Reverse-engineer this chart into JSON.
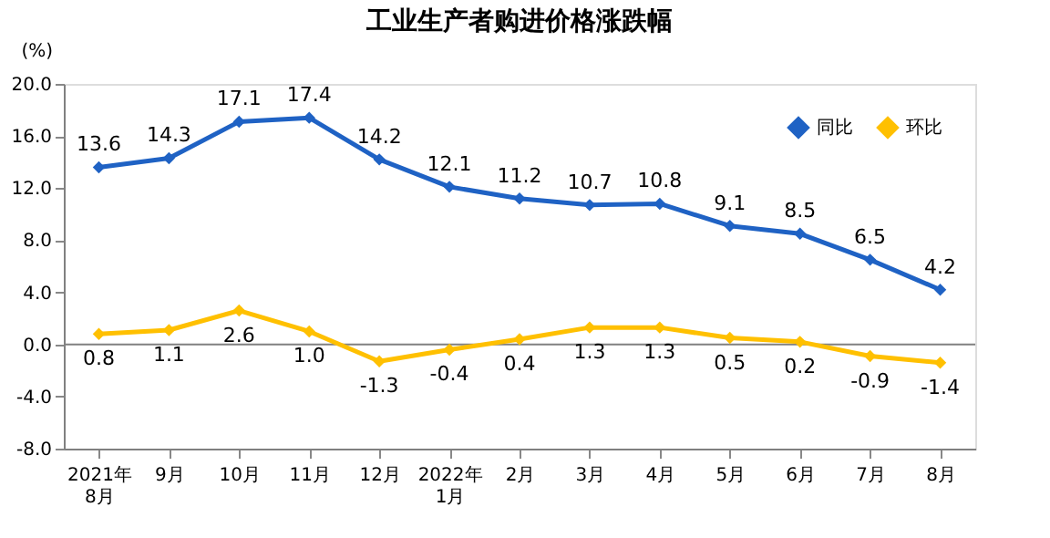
{
  "chart_data": {
    "type": "line",
    "title": "工业生产者购进价格涨跌幅",
    "ylabel": "(%)",
    "categories": [
      "2021年\n8月",
      "9月",
      "10月",
      "11月",
      "12月",
      "2022年\n1月",
      "2月",
      "3月",
      "4月",
      "5月",
      "6月",
      "7月",
      "8月"
    ],
    "series": [
      {
        "name": "同比",
        "color": "#1f62c4",
        "values": [
          13.6,
          14.3,
          17.1,
          17.4,
          14.2,
          12.1,
          11.2,
          10.7,
          10.8,
          9.1,
          8.5,
          6.5,
          4.2
        ],
        "value_labels": [
          "13.6",
          "14.3",
          "17.1",
          "17.4",
          "14.2",
          "12.1",
          "11.2",
          "10.7",
          "10.8",
          "9.1",
          "8.5",
          "6.5",
          "4.2"
        ]
      },
      {
        "name": "环比",
        "color": "#ffc000",
        "values": [
          0.8,
          1.1,
          2.6,
          1.0,
          -1.3,
          -0.4,
          0.4,
          1.3,
          1.3,
          0.5,
          0.2,
          -0.9,
          -1.4
        ],
        "value_labels": [
          "0.8",
          "1.1",
          "2.6",
          "1.0",
          "-1.3",
          "-0.4",
          "0.4",
          "1.3",
          "1.3",
          "0.5",
          "0.2",
          "-0.9",
          "-1.4"
        ]
      }
    ],
    "ylim": [
      -8,
      20
    ],
    "yticks": [
      {
        "value": -8,
        "label": "-8.0"
      },
      {
        "value": -4,
        "label": "-4.0"
      },
      {
        "value": 0,
        "label": "0.0"
      },
      {
        "value": 4,
        "label": "4.0"
      },
      {
        "value": 8,
        "label": "8.0"
      },
      {
        "value": 12,
        "label": "12.0"
      },
      {
        "value": 16,
        "label": "16.0"
      },
      {
        "value": 20,
        "label": "20.0"
      }
    ],
    "ref_lines": [
      {
        "axis": "y",
        "value": 0,
        "color": "#808080"
      }
    ],
    "data_labels": true,
    "legend": "top right",
    "marker": "diamond",
    "line_style": "solid",
    "grid": false
  }
}
